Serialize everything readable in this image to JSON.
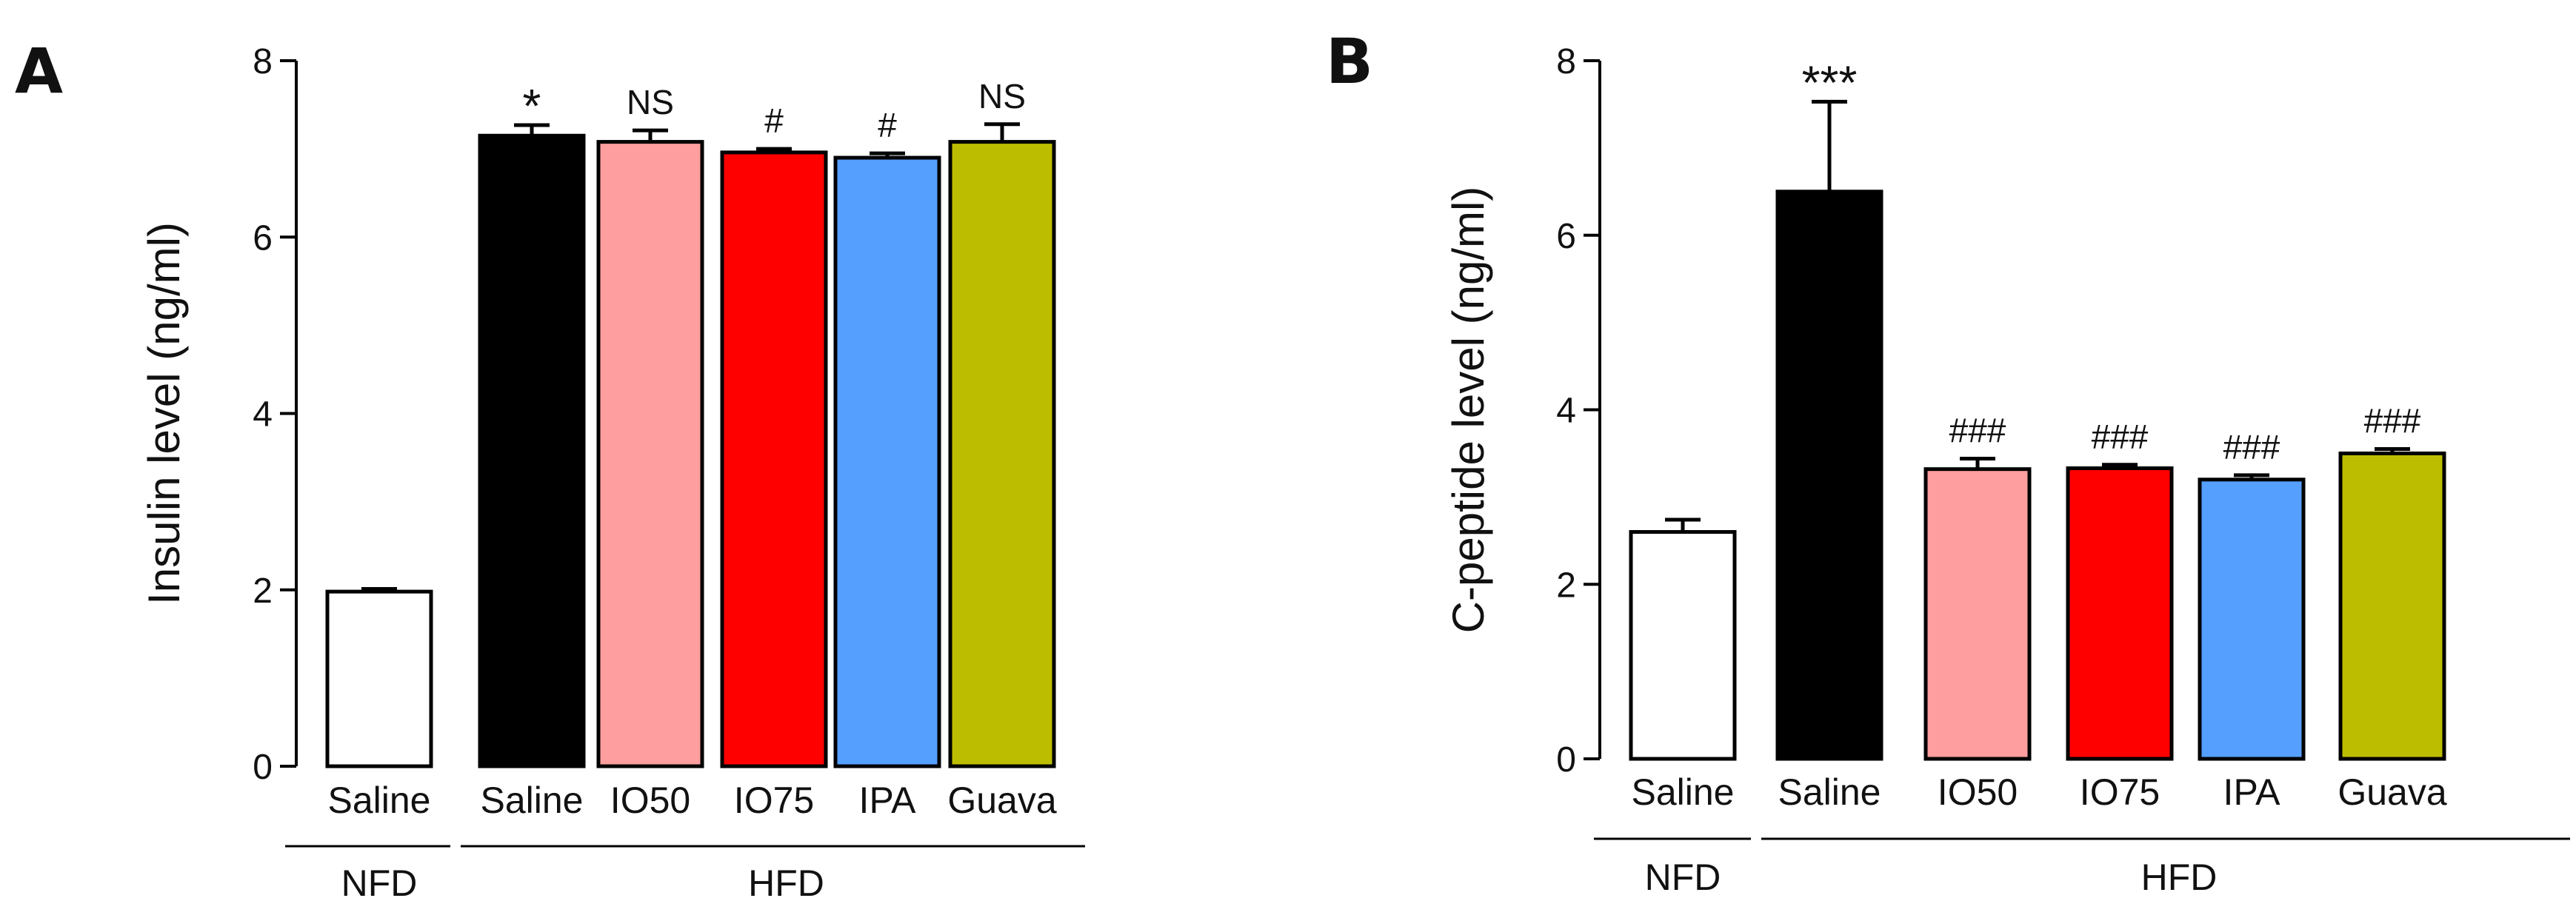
{
  "figure": {
    "panels": [
      "A",
      "B"
    ]
  },
  "chart_data": [
    {
      "panel": "A",
      "type": "bar",
      "ylabel": "Insulin level (ng/ml)",
      "ylim": [
        0,
        8
      ],
      "yticks": [
        0,
        2,
        4,
        6,
        8
      ],
      "categories": [
        "Saline",
        "Saline",
        "IO50",
        "IO75",
        "IPA",
        "Guava"
      ],
      "groups": [
        {
          "label": "NFD",
          "categories": [
            0
          ]
        },
        {
          "label": "HFD",
          "categories": [
            1,
            2,
            3,
            4,
            5
          ]
        }
      ],
      "values": [
        1.98,
        7.15,
        7.08,
        6.96,
        6.9,
        7.08
      ],
      "errors": [
        0.03,
        0.12,
        0.13,
        0.04,
        0.05,
        0.2
      ],
      "annotations": [
        "",
        "*",
        "NS",
        "#",
        "#",
        "NS"
      ],
      "colors": [
        "#ffffff",
        "#000000",
        "#ff9e9e",
        "#ff0000",
        "#559fff",
        "#bdbd00"
      ]
    },
    {
      "panel": "B",
      "type": "bar",
      "ylabel": "C-peptide level (ng/ml)",
      "ylim": [
        0,
        8
      ],
      "yticks": [
        0,
        2,
        4,
        6,
        8
      ],
      "categories": [
        "Saline",
        "Saline",
        "IO50",
        "IO75",
        "IPA",
        "Guava"
      ],
      "groups": [
        {
          "label": "NFD",
          "categories": [
            0
          ]
        },
        {
          "label": "HFD",
          "categories": [
            1,
            2,
            3,
            4,
            5
          ]
        }
      ],
      "values": [
        2.6,
        6.5,
        3.32,
        3.33,
        3.2,
        3.5
      ],
      "errors": [
        0.14,
        1.03,
        0.12,
        0.04,
        0.05,
        0.05
      ],
      "annotations": [
        "",
        "***",
        "###",
        "###",
        "###",
        "###"
      ],
      "colors": [
        "#ffffff",
        "#000000",
        "#ff9e9e",
        "#ff0000",
        "#559fff",
        "#bdbd00"
      ]
    }
  ]
}
